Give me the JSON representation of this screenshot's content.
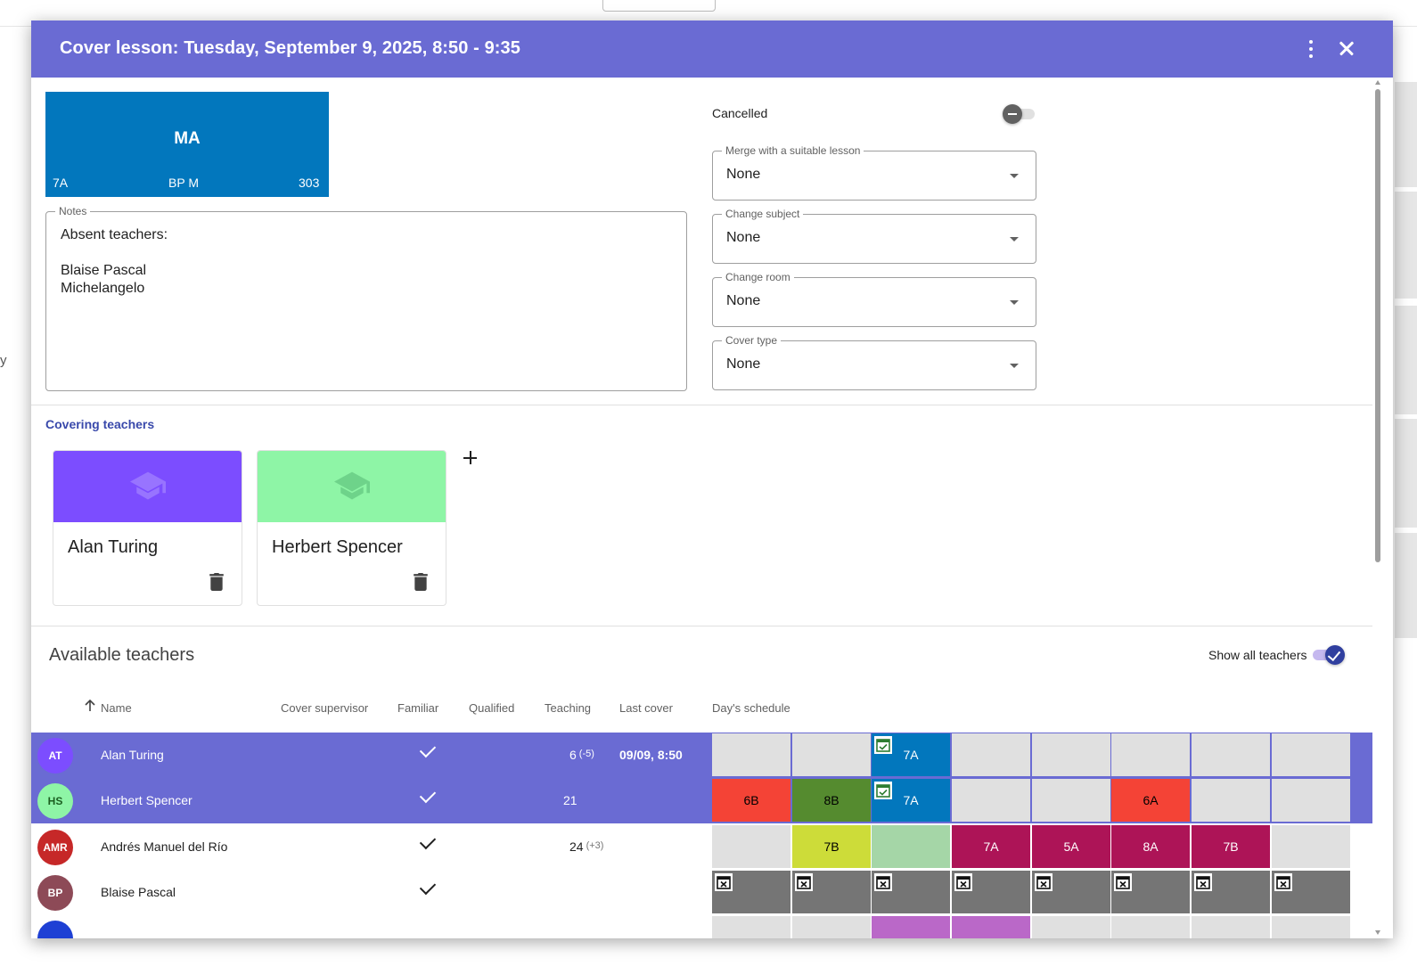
{
  "dialog": {
    "title": "Cover lesson: Tuesday, September 9, 2025, 8:50 - 9:35",
    "more_icon": "more-vert-icon",
    "close_icon": "close-icon"
  },
  "lesson": {
    "subject": "MA",
    "class": "7A",
    "teacher": "BP M",
    "room": "303",
    "color": "#0277bd"
  },
  "notes": {
    "label": "Notes",
    "value": "Absent teachers:\n\nBlaise Pascal\nMichelangelo"
  },
  "options": {
    "cancelled_label": "Cancelled",
    "cancelled": false,
    "selects": [
      {
        "label": "Merge with a suitable lesson",
        "value": "None"
      },
      {
        "label": "Change subject",
        "value": "None"
      },
      {
        "label": "Change room",
        "value": "None"
      },
      {
        "label": "Cover type",
        "value": "None"
      }
    ]
  },
  "covering": {
    "title": "Covering teachers",
    "teachers": [
      {
        "name": "Alan Turing",
        "color": "#7c4dff",
        "icon": "graduation-cap-icon"
      },
      {
        "name": "Herbert Spencer",
        "color": "#8ef5a6",
        "icon": "graduation-cap-icon"
      }
    ],
    "add_icon": "plus-icon"
  },
  "available": {
    "title": "Available teachers",
    "show_all_label": "Show all teachers",
    "show_all": true,
    "columns": {
      "name": "Name",
      "cover_supervisor": "Cover supervisor",
      "familiar": "Familiar",
      "qualified": "Qualified",
      "teaching": "Teaching",
      "last_cover": "Last cover",
      "days_schedule": "Day's schedule"
    },
    "rows": [
      {
        "initials": "AT",
        "name": "Alan Turing",
        "avatar_color": "#7c4dff",
        "selected": true,
        "familiar": true,
        "teaching": "6",
        "teaching_diff": "(-5)",
        "last_cover": "09/09, 8:50",
        "schedule": [
          {
            "label": "",
            "color": "#e0e0e0"
          },
          {
            "label": "",
            "color": "#e0e0e0"
          },
          {
            "label": "7A",
            "color": "#0277bd",
            "icon": "calendar-check-icon",
            "text": "#ffffff"
          },
          {
            "label": "",
            "color": "#e0e0e0"
          },
          {
            "label": "",
            "color": "#e0e0e0"
          },
          {
            "label": "",
            "color": "#e0e0e0"
          },
          {
            "label": "",
            "color": "#e0e0e0"
          },
          {
            "label": "",
            "color": "#e0e0e0"
          }
        ]
      },
      {
        "initials": "HS",
        "name": "Herbert Spencer",
        "avatar_color": "#8ef5a6",
        "selected": true,
        "familiar": true,
        "teaching": "21",
        "teaching_diff": "",
        "last_cover": "",
        "schedule": [
          {
            "label": "6B",
            "color": "#f44336",
            "text": "#000000"
          },
          {
            "label": "8B",
            "color": "#558b2f",
            "text": "#000000"
          },
          {
            "label": "7A",
            "color": "#0277bd",
            "icon": "calendar-check-icon",
            "text": "#ffffff"
          },
          {
            "label": "",
            "color": "#e0e0e0"
          },
          {
            "label": "",
            "color": "#e0e0e0"
          },
          {
            "label": "6A",
            "color": "#f44336",
            "text": "#000000"
          },
          {
            "label": "",
            "color": "#e0e0e0"
          },
          {
            "label": "",
            "color": "#e0e0e0"
          }
        ]
      },
      {
        "initials": "AMR",
        "name": "Andrés Manuel del Río",
        "avatar_color": "#c62828",
        "selected": false,
        "familiar": true,
        "teaching": "24",
        "teaching_diff": "(+3)",
        "last_cover": "",
        "schedule": [
          {
            "label": "",
            "color": "#e0e0e0"
          },
          {
            "label": "7B",
            "color": "#cddc39",
            "text": "#000000"
          },
          {
            "label": "",
            "color": "#a5d6a7"
          },
          {
            "label": "7A",
            "color": "#ad1457",
            "text": "#ffffff"
          },
          {
            "label": "5A",
            "color": "#ad1457",
            "text": "#ffffff"
          },
          {
            "label": "8A",
            "color": "#ad1457",
            "text": "#ffffff"
          },
          {
            "label": "7B",
            "color": "#ad1457",
            "text": "#ffffff"
          },
          {
            "label": "",
            "color": "#e0e0e0"
          }
        ]
      },
      {
        "initials": "BP",
        "name": "Blaise Pascal",
        "avatar_color": "#8d4a57",
        "selected": false,
        "familiar": true,
        "teaching": "",
        "teaching_diff": "",
        "last_cover": "",
        "schedule": [
          {
            "label": "",
            "color": "#757575",
            "icon": "calendar-x-icon"
          },
          {
            "label": "",
            "color": "#757575",
            "icon": "calendar-x-icon"
          },
          {
            "label": "",
            "color": "#757575",
            "icon": "calendar-x-icon"
          },
          {
            "label": "",
            "color": "#757575",
            "icon": "calendar-x-icon"
          },
          {
            "label": "",
            "color": "#757575",
            "icon": "calendar-x-icon"
          },
          {
            "label": "",
            "color": "#757575",
            "icon": "calendar-x-icon"
          },
          {
            "label": "",
            "color": "#757575",
            "icon": "calendar-x-icon"
          },
          {
            "label": "",
            "color": "#757575",
            "icon": "calendar-x-icon"
          }
        ]
      },
      {
        "initials": "",
        "name": "",
        "avatar_color": "#1e40d4",
        "selected": false,
        "familiar": false,
        "teaching": "",
        "teaching_diff": "",
        "last_cover": "",
        "schedule": [
          {
            "label": "",
            "color": "#e0e0e0"
          },
          {
            "label": "",
            "color": "#e0e0e0"
          },
          {
            "label": "",
            "color": "#ba68c8"
          },
          {
            "label": "",
            "color": "#ba68c8"
          },
          {
            "label": "",
            "color": "#e0e0e0"
          },
          {
            "label": "",
            "color": "#e0e0e0"
          },
          {
            "label": "",
            "color": "#e0e0e0"
          },
          {
            "label": "",
            "color": "#e0e0e0"
          }
        ]
      }
    ]
  },
  "background": {
    "partial_text": "y"
  }
}
